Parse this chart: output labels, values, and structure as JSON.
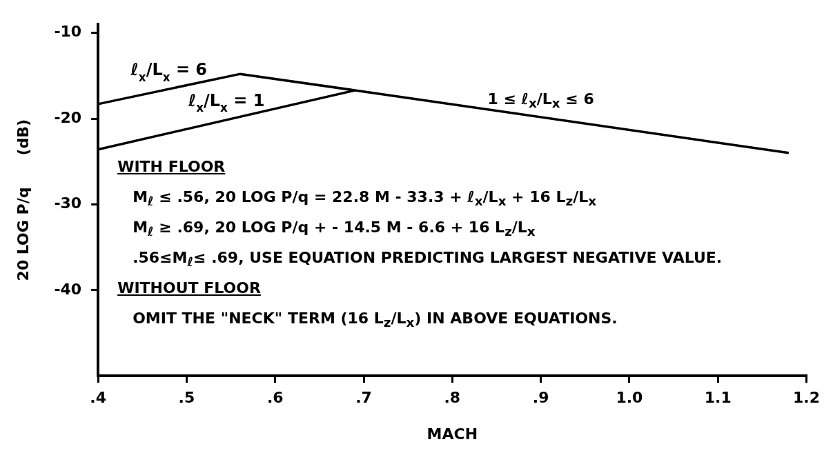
{
  "chart_data": {
    "type": "line",
    "xlabel": "MACH",
    "ylabel": "20 LOG P/q      (dB)",
    "xlim": [
      0.4,
      1.2
    ],
    "xticks": [
      {
        "value": 0.4,
        "label": ".4"
      },
      {
        "value": 0.5,
        "label": ".5"
      },
      {
        "value": 0.6,
        "label": ".6"
      },
      {
        "value": 0.7,
        "label": ".7"
      },
      {
        "value": 0.8,
        "label": ".8"
      },
      {
        "value": 0.9,
        "label": ".9"
      },
      {
        "value": 1.0,
        "label": "1.0"
      },
      {
        "value": 1.1,
        "label": "1.1"
      },
      {
        "value": 1.2,
        "label": "1.2"
      }
    ],
    "ylim": [
      -50,
      -9
    ],
    "yticks": [
      -40,
      -30,
      -20,
      -10
    ],
    "grid": false,
    "legend": false,
    "marker": "none",
    "line_style": "solid",
    "series": [
      {
        "name": "ℓ$_{x}$/L$_{x}$ = 6",
        "color": "#000000",
        "x": [
          0.4,
          0.56,
          0.69,
          1.18
        ],
        "values": [
          -18.3,
          -14.8,
          -16.7,
          -24.0
        ]
      },
      {
        "name": "ℓ$_{x}$/L$_{x}$ = 1",
        "color": "#000000",
        "x": [
          0.4,
          0.69
        ],
        "values": [
          -23.6,
          -16.7
        ]
      }
    ],
    "annotations": [
      {
        "text": "1 ≤ ℓ$_{x}$/L$_{x}$ ≤ 6",
        "x": 0.9,
        "y": -19.6
      },
      "WITH FLOOR",
      "M$_{ℓ}$ ≤ .56, 20 LOG P/q = 22.8 M  - 33.3 + ℓ$_{x}$/L$_{x}$ + 16 L$_{z}$/L$_{x}$",
      "M$_{ℓ}$ ≥ .69, 20 LOG P/q + - 14.5 M  - 6.6 + 16 L$_{z}$/L$_{x}$",
      ".56≤M$_{ℓ}$≤ .69, USE EQUATION PREDICTING LARGEST NEGATIVE VALUE.",
      "WITHOUT FLOOR",
      "OMIT THE \"NECK\" TERM  (16 L$_{z}$/L$_{x}$) IN ABOVE EQUATIONS."
    ]
  }
}
